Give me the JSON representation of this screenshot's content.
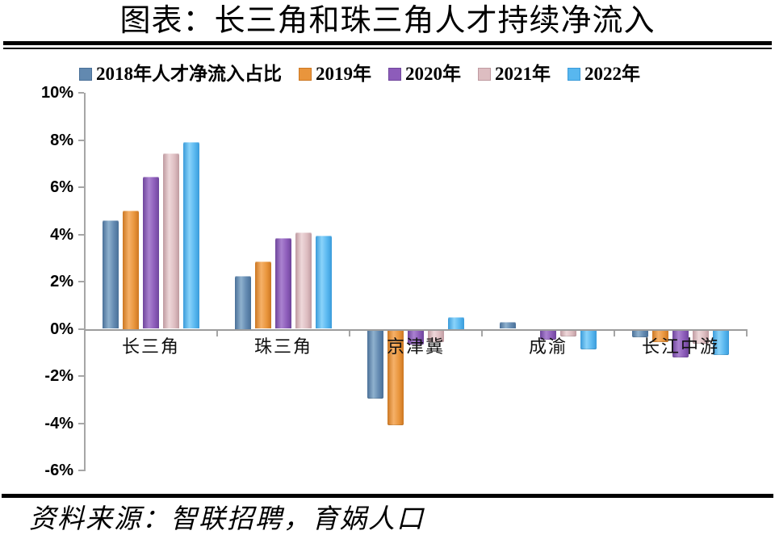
{
  "page": {
    "title": "图表：长三角和珠三角人才持续净流入",
    "source": "资料来源：智联招聘，育娲人口"
  },
  "chart_data": {
    "type": "bar",
    "title": "图表：长三角和珠三角人才持续净流入",
    "categories": [
      "长三角",
      "珠三角",
      "京津冀",
      "成渝",
      "长江中游"
    ],
    "series": [
      {
        "name": "2018年人才净流入占比",
        "color": "#6289b0",
        "light": "#8fb1ce",
        "dark": "#4a7098",
        "values": [
          4.6,
          2.25,
          -2.9,
          0.3,
          -0.3
        ]
      },
      {
        "name": "2019年",
        "color": "#e9953c",
        "light": "#f5b169",
        "dark": "#cc7722",
        "values": [
          5.0,
          2.85,
          -4.0,
          0.0,
          -0.5
        ]
      },
      {
        "name": "2020年",
        "color": "#8d5cba",
        "light": "#aa82d0",
        "dark": "#6f459c",
        "values": [
          6.45,
          3.85,
          -0.6,
          -0.4,
          -1.15
        ]
      },
      {
        "name": "2021年",
        "color": "#ddbdc1",
        "light": "#eed8da",
        "dark": "#bf9aa0",
        "values": [
          7.45,
          4.1,
          -0.5,
          -0.25,
          -0.55
        ]
      },
      {
        "name": "2022年",
        "color": "#58b7ef",
        "light": "#8ad3fa",
        "dark": "#3a9bda",
        "values": [
          7.9,
          3.95,
          0.5,
          -0.8,
          -1.05
        ]
      }
    ],
    "ylim": [
      -6,
      10
    ],
    "ytick_step": 2,
    "ytick_labels": [
      "10%",
      "8%",
      "6%",
      "4%",
      "2%",
      "0%",
      "-2%",
      "-4%",
      "-6%"
    ],
    "xlabel": "",
    "ylabel": "",
    "legend_position": "top",
    "grid": false,
    "axis_color": "#a6a6a6"
  }
}
